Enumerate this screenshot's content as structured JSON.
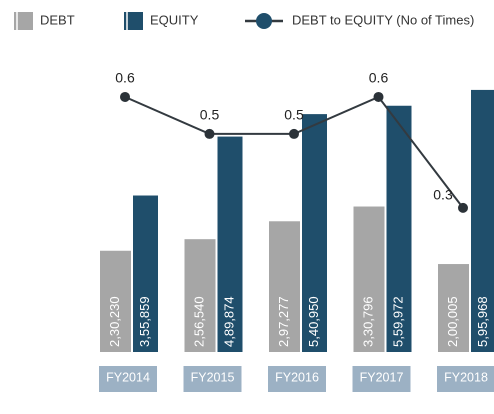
{
  "chart_data": {
    "type": "bar-line",
    "categories": [
      "FY2014",
      "FY2015",
      "FY2016",
      "FY2017",
      "FY2018"
    ],
    "series": [
      {
        "name": "DEBT",
        "type": "bar",
        "color": "#a6a6a6",
        "values": [
          230230,
          256540,
          297277,
          330796,
          200005
        ],
        "value_labels": [
          "2,30,230",
          "2,56,540",
          "2,97,277",
          "3,30,796",
          "2,00,005"
        ]
      },
      {
        "name": "EQUITY",
        "type": "bar",
        "color": "#1f4e6b",
        "values": [
          355859,
          489874,
          540950,
          559972,
          595968
        ],
        "value_labels": [
          "3,55,859",
          "4,89,874",
          "5,40,950",
          "5,59,972",
          "5,95,968"
        ]
      },
      {
        "name": "DEBT to EQUITY (No of Times)",
        "type": "line",
        "axis": "y2",
        "color": "#333a40",
        "values": [
          0.6,
          0.5,
          0.5,
          0.6,
          0.3
        ]
      }
    ],
    "ylim": [
      0,
      664000
    ],
    "y2lim": [
      -0.09,
      0.7
    ],
    "category_color": "#9cb1c4",
    "legend": "top"
  }
}
